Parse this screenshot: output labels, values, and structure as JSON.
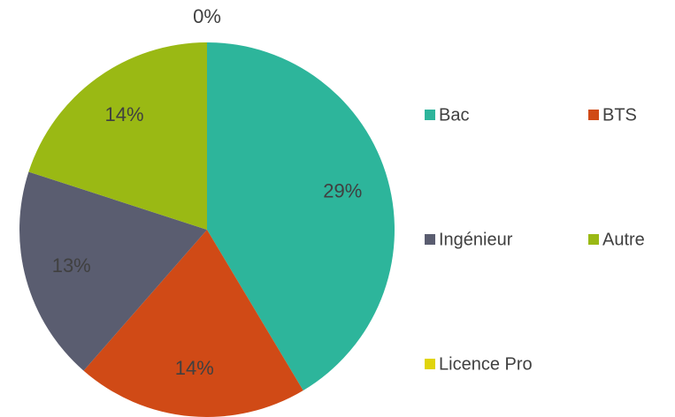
{
  "chart_data": {
    "type": "pie",
    "categories": [
      "Bac",
      "BTS",
      "Ingénieur",
      "Autre",
      "Licence Pro"
    ],
    "values": [
      29,
      14,
      13,
      14,
      0
    ],
    "value_labels": [
      "29%",
      "14%",
      "13%",
      "14%",
      "0%"
    ],
    "colors": [
      "#2db59b",
      "#d04a16",
      "#5a5d70",
      "#9ab914",
      "#e0d40c"
    ],
    "legend": "right"
  }
}
